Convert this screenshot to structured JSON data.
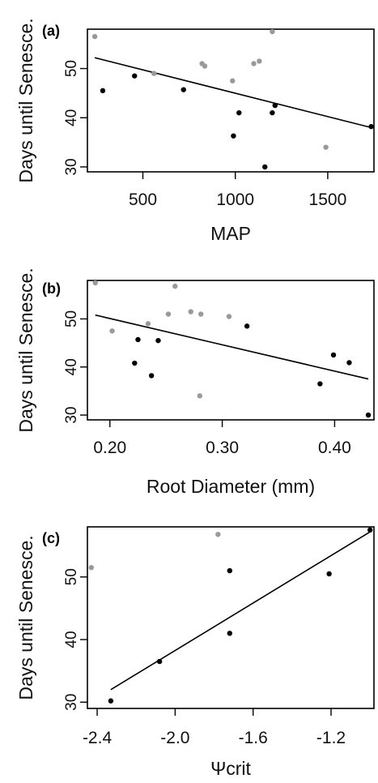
{
  "chart_data": [
    {
      "type": "scatter",
      "panel_label": "(a)",
      "xlabel": "MAP",
      "ylabel": "Days until Senesce.",
      "xlim": [
        200,
        1750
      ],
      "ylim": [
        29,
        58
      ],
      "xticks": [
        500,
        1000,
        1500
      ],
      "xtick_labels": [
        "500",
        "1000",
        "1500"
      ],
      "yticks": [
        30,
        40,
        50
      ],
      "ytick_labels": [
        "30",
        "40",
        "50"
      ],
      "grid": false,
      "series": [
        {
          "color": "#000000",
          "points": [
            [
              283,
              45.5
            ],
            [
              455,
              48.5
            ],
            [
              720,
              45.7
            ],
            [
              990,
              36.3
            ],
            [
              1020,
              41.0
            ],
            [
              1160,
              30.0
            ],
            [
              1200,
              41.0
            ],
            [
              1215,
              42.5
            ],
            [
              1735,
              38.2
            ]
          ]
        },
        {
          "color": "#999999",
          "points": [
            [
              240,
              56.5
            ],
            [
              560,
              49.0
            ],
            [
              820,
              51.0
            ],
            [
              835,
              50.5
            ],
            [
              985,
              47.5
            ],
            [
              1100,
              51.0
            ],
            [
              1130,
              51.5
            ],
            [
              1200,
              57.5
            ],
            [
              1490,
              34.0
            ]
          ]
        }
      ],
      "fit_line": {
        "x": [
          240,
          1735
        ],
        "y": [
          52.2,
          38.0
        ],
        "color": "#000000"
      }
    },
    {
      "type": "scatter",
      "panel_label": "(b)",
      "xlabel": "Root Diameter (mm)",
      "ylabel": "Days until Senesce.",
      "xlim": [
        0.18,
        0.435
      ],
      "ylim": [
        29,
        58
      ],
      "xticks": [
        0.2,
        0.3,
        0.4
      ],
      "xtick_labels": [
        "0.20",
        "0.30",
        "0.40"
      ],
      "yticks": [
        30,
        40,
        50
      ],
      "ytick_labels": [
        "30",
        "40",
        "50"
      ],
      "grid": false,
      "series": [
        {
          "color": "#000000",
          "points": [
            [
              0.222,
              40.8
            ],
            [
              0.225,
              45.7
            ],
            [
              0.237,
              38.2
            ],
            [
              0.243,
              45.5
            ],
            [
              0.322,
              48.5
            ],
            [
              0.387,
              36.5
            ],
            [
              0.399,
              42.5
            ],
            [
              0.413,
              40.9
            ],
            [
              0.43,
              30.0
            ]
          ]
        },
        {
          "color": "#999999",
          "points": [
            [
              0.187,
              57.5
            ],
            [
              0.202,
              47.5
            ],
            [
              0.234,
              49.0
            ],
            [
              0.252,
              51.0
            ],
            [
              0.258,
              56.8
            ],
            [
              0.272,
              51.5
            ],
            [
              0.281,
              51.0
            ],
            [
              0.28,
              34.0
            ],
            [
              0.306,
              50.5
            ]
          ]
        }
      ],
      "fit_line": {
        "x": [
          0.187,
          0.43
        ],
        "y": [
          50.8,
          37.5
        ],
        "color": "#000000"
      }
    },
    {
      "type": "scatter",
      "panel_label": "(c)",
      "xlabel": "Ψcrit",
      "ylabel": "Days until Senesce.",
      "xlim": [
        -2.45,
        -0.98
      ],
      "ylim": [
        29,
        58
      ],
      "xticks": [
        -2.4,
        -2.0,
        -1.6,
        -1.2
      ],
      "xtick_labels": [
        "-2.4",
        "-2.0",
        "-1.6",
        "-1.2"
      ],
      "yticks": [
        30,
        40,
        50
      ],
      "ytick_labels": [
        "30",
        "40",
        "50"
      ],
      "grid": false,
      "series": [
        {
          "color": "#000000",
          "points": [
            [
              -2.33,
              30.2
            ],
            [
              -2.08,
              36.5
            ],
            [
              -1.72,
              51.0
            ],
            [
              -1.72,
              41.0
            ],
            [
              -1.21,
              50.5
            ],
            [
              -1.0,
              57.5
            ]
          ]
        },
        {
          "color": "#999999",
          "points": [
            [
              -2.43,
              51.5
            ],
            [
              -1.78,
              56.8
            ]
          ]
        }
      ],
      "fit_line": {
        "x": [
          -2.33,
          -1.0
        ],
        "y": [
          32.0,
          57.2
        ],
        "color": "#000000"
      }
    }
  ]
}
